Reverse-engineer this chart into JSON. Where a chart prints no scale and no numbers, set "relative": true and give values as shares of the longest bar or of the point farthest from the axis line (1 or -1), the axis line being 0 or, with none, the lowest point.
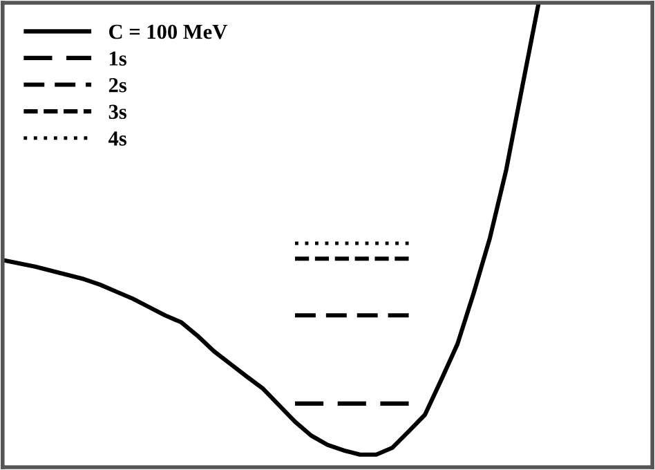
{
  "chart_data": {
    "type": "line",
    "relative": true,
    "tick_labels": false,
    "legend": "top left",
    "categories": [
      null,
      null,
      null,
      null,
      null,
      null,
      null,
      null,
      null,
      null,
      null,
      null,
      null,
      null,
      null,
      null,
      null,
      null,
      null,
      null,
      null,
      null,
      null,
      null,
      null,
      null,
      null,
      null,
      null,
      null,
      null,
      null,
      null,
      null,
      null,
      null,
      null,
      null,
      null,
      null,
      null
    ],
    "series": [
      {
        "name": "C = 100 MeV",
        "color": "#000000",
        "line_style": "solid",
        "values": [
          0.446,
          0.439,
          0.432,
          0.423,
          0.414,
          0.405,
          0.393,
          0.378,
          0.363,
          0.345,
          0.327,
          0.312,
          0.283,
          0.25,
          0.223,
          0.196,
          0.17,
          0.134,
          0.098,
          0.068,
          0.048,
          0.036,
          0.027,
          0.027,
          0.042,
          0.077,
          0.113,
          0.188,
          0.265,
          0.375,
          0.494,
          0.64,
          0.821,
          1.0,
          null,
          null,
          null,
          null,
          null,
          null,
          null
        ]
      },
      {
        "name": "1s",
        "color": "#000000",
        "line_style": "dashed",
        "values": [
          null,
          null,
          null,
          null,
          null,
          null,
          null,
          null,
          null,
          null,
          null,
          null,
          null,
          null,
          null,
          null,
          null,
          null,
          0.137,
          0.137,
          0.137,
          0.137,
          0.137,
          0.137,
          0.137,
          0.137,
          null,
          null,
          null,
          null,
          null,
          null,
          null,
          null,
          null,
          null,
          null,
          null,
          null,
          null,
          null
        ]
      },
      {
        "name": "2s",
        "color": "#000000",
        "line_style": "dashed",
        "values": [
          null,
          null,
          null,
          null,
          null,
          null,
          null,
          null,
          null,
          null,
          null,
          null,
          null,
          null,
          null,
          null,
          null,
          null,
          0.327,
          0.327,
          0.327,
          0.327,
          0.327,
          0.327,
          0.327,
          0.327,
          null,
          null,
          null,
          null,
          null,
          null,
          null,
          null,
          null,
          null,
          null,
          null,
          null,
          null,
          null
        ]
      },
      {
        "name": "3s",
        "color": "#000000",
        "line_style": "dashed",
        "values": [
          null,
          null,
          null,
          null,
          null,
          null,
          null,
          null,
          null,
          null,
          null,
          null,
          null,
          null,
          null,
          null,
          null,
          null,
          0.449,
          0.449,
          0.449,
          0.449,
          0.449,
          0.449,
          0.449,
          0.449,
          null,
          null,
          null,
          null,
          null,
          null,
          null,
          null,
          null,
          null,
          null,
          null,
          null,
          null,
          null
        ]
      },
      {
        "name": "4s",
        "color": "#000000",
        "line_style": "dotted",
        "values": [
          null,
          null,
          null,
          null,
          null,
          null,
          null,
          null,
          null,
          null,
          null,
          null,
          null,
          null,
          null,
          null,
          null,
          null,
          0.482,
          0.482,
          0.482,
          0.482,
          0.482,
          0.482,
          0.482,
          0.482,
          null,
          null,
          null,
          null,
          null,
          null,
          null,
          null,
          null,
          null,
          null,
          null,
          null,
          null,
          null
        ]
      }
    ]
  }
}
